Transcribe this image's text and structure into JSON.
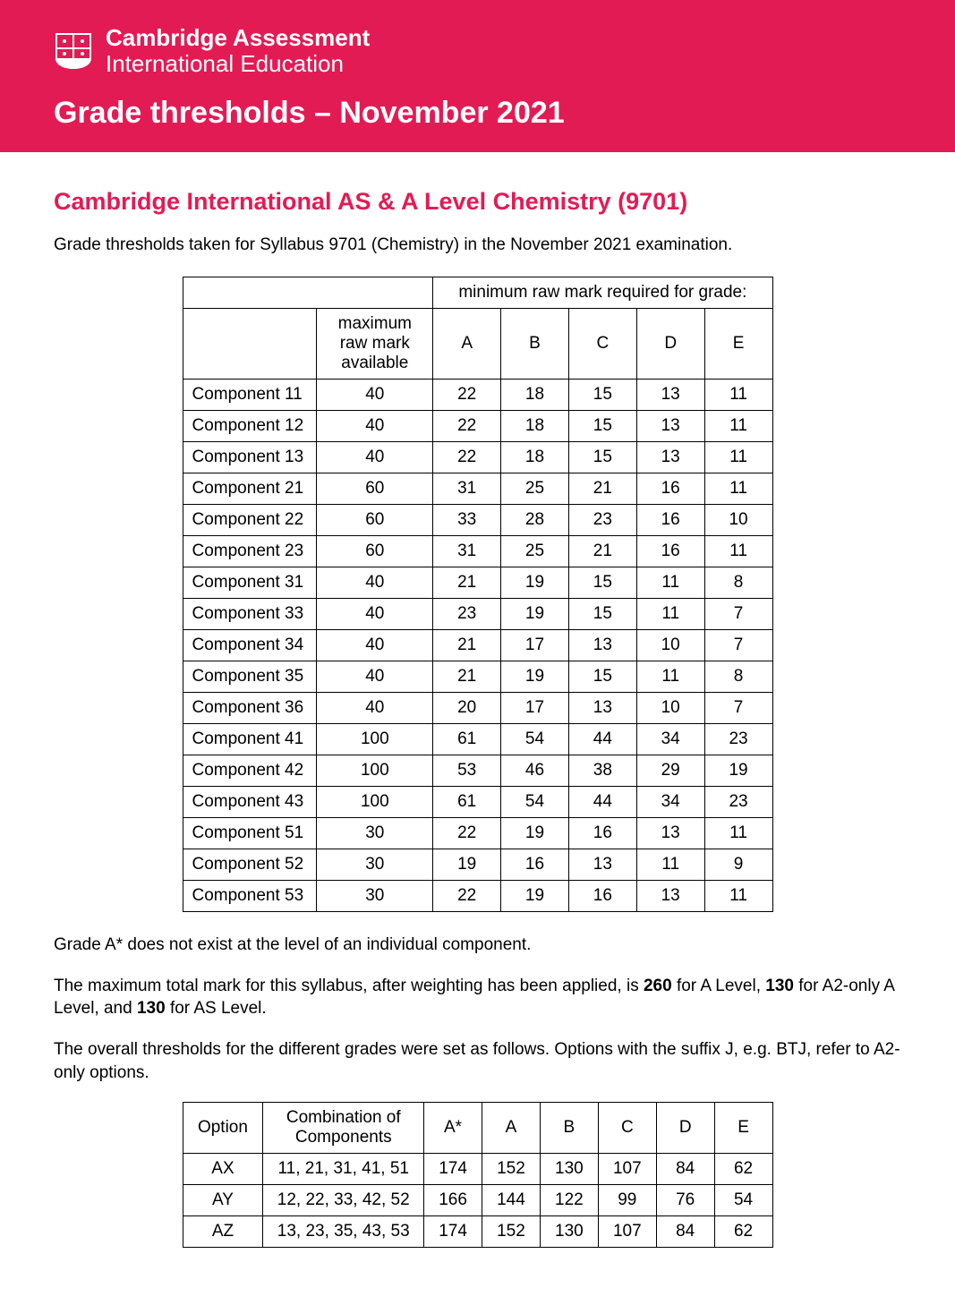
{
  "brand": {
    "line1": "Cambridge Assessment",
    "line2": "International Education"
  },
  "banner_title": "Grade thresholds – November 2021",
  "page_title": "Cambridge International AS & A Level Chemistry (9701)",
  "intro": "Grade thresholds taken for Syllabus 9701 (Chemistry) in the November 2021 examination.",
  "table1": {
    "span_header": "minimum raw mark required for grade:",
    "max_header": "maximum raw mark available",
    "grades": [
      "A",
      "B",
      "C",
      "D",
      "E"
    ],
    "rows": [
      {
        "label": "Component 11",
        "max": "40",
        "v": [
          "22",
          "18",
          "15",
          "13",
          "11"
        ]
      },
      {
        "label": "Component 12",
        "max": "40",
        "v": [
          "22",
          "18",
          "15",
          "13",
          "11"
        ]
      },
      {
        "label": "Component 13",
        "max": "40",
        "v": [
          "22",
          "18",
          "15",
          "13",
          "11"
        ]
      },
      {
        "label": "Component 21",
        "max": "60",
        "v": [
          "31",
          "25",
          "21",
          "16",
          "11"
        ]
      },
      {
        "label": "Component 22",
        "max": "60",
        "v": [
          "33",
          "28",
          "23",
          "16",
          "10"
        ]
      },
      {
        "label": "Component 23",
        "max": "60",
        "v": [
          "31",
          "25",
          "21",
          "16",
          "11"
        ]
      },
      {
        "label": "Component 31",
        "max": "40",
        "v": [
          "21",
          "19",
          "15",
          "11",
          "8"
        ]
      },
      {
        "label": "Component 33",
        "max": "40",
        "v": [
          "23",
          "19",
          "15",
          "11",
          "7"
        ]
      },
      {
        "label": "Component 34",
        "max": "40",
        "v": [
          "21",
          "17",
          "13",
          "10",
          "7"
        ]
      },
      {
        "label": "Component 35",
        "max": "40",
        "v": [
          "21",
          "19",
          "15",
          "11",
          "8"
        ]
      },
      {
        "label": "Component 36",
        "max": "40",
        "v": [
          "20",
          "17",
          "13",
          "10",
          "7"
        ]
      },
      {
        "label": "Component 41",
        "max": "100",
        "v": [
          "61",
          "54",
          "44",
          "34",
          "23"
        ]
      },
      {
        "label": "Component 42",
        "max": "100",
        "v": [
          "53",
          "46",
          "38",
          "29",
          "19"
        ]
      },
      {
        "label": "Component 43",
        "max": "100",
        "v": [
          "61",
          "54",
          "44",
          "34",
          "23"
        ]
      },
      {
        "label": "Component 51",
        "max": "30",
        "v": [
          "22",
          "19",
          "16",
          "13",
          "11"
        ]
      },
      {
        "label": "Component 52",
        "max": "30",
        "v": [
          "19",
          "16",
          "13",
          "11",
          "9"
        ]
      },
      {
        "label": "Component 53",
        "max": "30",
        "v": [
          "22",
          "19",
          "16",
          "13",
          "11"
        ]
      }
    ]
  },
  "note1": "Grade A* does not exist at the level of an individual component.",
  "note2_pre": "The maximum total mark for this syllabus, after weighting has been applied, is ",
  "note2_b1": "260",
  "note2_mid1": " for A Level, ",
  "note2_b2": "130",
  "note2_mid2": " for A2-only A Level, and ",
  "note2_b3": "130",
  "note2_post": " for AS Level.",
  "note3": "The overall thresholds for the different grades were set as follows. Options with the suffix J, e.g. BTJ, refer to A2-only options.",
  "table2": {
    "headers": [
      "Option",
      "Combination of Components",
      "A*",
      "A",
      "B",
      "C",
      "D",
      "E"
    ],
    "rows": [
      {
        "opt": "AX",
        "combo": "11, 21, 31, 41, 51",
        "v": [
          "174",
          "152",
          "130",
          "107",
          "84",
          "62"
        ]
      },
      {
        "opt": "AY",
        "combo": "12, 22, 33, 42, 52",
        "v": [
          "166",
          "144",
          "122",
          "99",
          "76",
          "54"
        ]
      },
      {
        "opt": "AZ",
        "combo": "13, 23, 35, 43, 53",
        "v": [
          "174",
          "152",
          "130",
          "107",
          "84",
          "62"
        ]
      }
    ]
  },
  "colors": {
    "brand": "#e31b54",
    "text": "#000000",
    "bg": "#ffffff"
  }
}
